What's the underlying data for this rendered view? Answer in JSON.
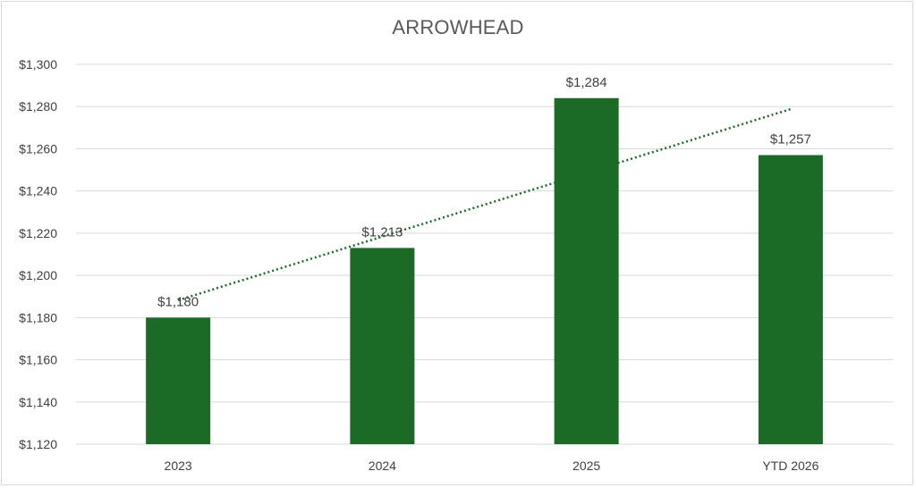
{
  "chart_data": {
    "type": "bar",
    "title": "ARROWHEAD",
    "categories": [
      "2023",
      "2024",
      "2025",
      "YTD 2026"
    ],
    "values": [
      1180,
      1213,
      1284,
      1257
    ],
    "data_labels": [
      "$1,180",
      "$1,213",
      "$1,284",
      "$1,257"
    ],
    "ylim": [
      1120,
      1300
    ],
    "yticks": [
      1120,
      1140,
      1160,
      1180,
      1200,
      1220,
      1240,
      1260,
      1280,
      1300
    ],
    "ytick_labels": [
      "$1,120",
      "$1,140",
      "$1,160",
      "$1,180",
      "$1,200",
      "$1,220",
      "$1,240",
      "$1,260",
      "$1,280",
      "$1,300"
    ],
    "grid": true,
    "trendline": {
      "type": "linear",
      "style": "dotted"
    },
    "colors": {
      "bar": "#1b6b27",
      "trendline": "#1b6b27",
      "grid": "#d9d9d9"
    }
  }
}
